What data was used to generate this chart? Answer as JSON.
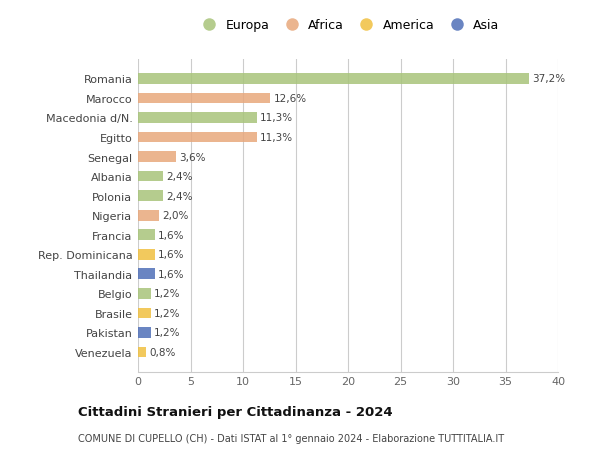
{
  "countries": [
    "Romania",
    "Marocco",
    "Macedonia d/N.",
    "Egitto",
    "Senegal",
    "Albania",
    "Polonia",
    "Nigeria",
    "Francia",
    "Rep. Dominicana",
    "Thailandia",
    "Belgio",
    "Brasile",
    "Pakistan",
    "Venezuela"
  ],
  "values": [
    37.2,
    12.6,
    11.3,
    11.3,
    3.6,
    2.4,
    2.4,
    2.0,
    1.6,
    1.6,
    1.6,
    1.2,
    1.2,
    1.2,
    0.8
  ],
  "labels": [
    "37,2%",
    "12,6%",
    "11,3%",
    "11,3%",
    "3,6%",
    "2,4%",
    "2,4%",
    "2,0%",
    "1,6%",
    "1,6%",
    "1,6%",
    "1,2%",
    "1,2%",
    "1,2%",
    "0,8%"
  ],
  "continents": [
    "Europa",
    "Africa",
    "Europa",
    "Africa",
    "Africa",
    "Europa",
    "Europa",
    "Africa",
    "Europa",
    "America",
    "Asia",
    "Europa",
    "America",
    "Asia",
    "America"
  ],
  "colors": {
    "Europa": "#a8c47a",
    "Africa": "#e8a87c",
    "America": "#f0c040",
    "Asia": "#5070b8"
  },
  "legend_order": [
    "Europa",
    "Africa",
    "America",
    "Asia"
  ],
  "xlim": [
    0,
    40
  ],
  "xticks": [
    0,
    5,
    10,
    15,
    20,
    25,
    30,
    35,
    40
  ],
  "title": "Cittadini Stranieri per Cittadinanza - 2024",
  "subtitle": "COMUNE DI CUPELLO (CH) - Dati ISTAT al 1° gennaio 2024 - Elaborazione TUTTITALIA.IT",
  "background_color": "#ffffff",
  "grid_color": "#cccccc",
  "bar_height": 0.55
}
